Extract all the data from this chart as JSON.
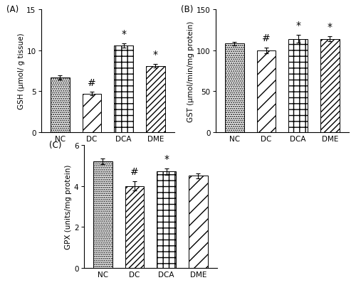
{
  "panel_A": {
    "label": "(A)",
    "categories": [
      "NC",
      "DC",
      "DCA",
      "DME"
    ],
    "values": [
      6.7,
      4.7,
      10.6,
      8.1
    ],
    "errors": [
      0.25,
      0.2,
      0.28,
      0.22
    ],
    "ylabel": "GSH (μmol/ g tissue)",
    "ylim": [
      0,
      15
    ],
    "yticks": [
      0,
      5,
      10,
      15
    ],
    "annotations": [
      "",
      "#",
      "*",
      "*"
    ],
    "hatches": [
      "......",
      "//",
      "++",
      "////"
    ]
  },
  "panel_B": {
    "label": "(B)",
    "categories": [
      "NC",
      "DC",
      "DCA",
      "DME"
    ],
    "values": [
      108,
      100,
      114,
      114
    ],
    "errors": [
      2.5,
      3.5,
      4.5,
      3.0
    ],
    "ylabel": "GST (μmol/min/mg protein)",
    "ylim": [
      0,
      150
    ],
    "yticks": [
      0,
      50,
      100,
      150
    ],
    "annotations": [
      "",
      "#",
      "*",
      "*"
    ],
    "hatches": [
      "......",
      "//",
      "++",
      "////"
    ]
  },
  "panel_C": {
    "label": "(C)",
    "categories": [
      "NC",
      "DC",
      "DCA",
      "DME"
    ],
    "values": [
      5.2,
      4.0,
      4.7,
      4.5
    ],
    "errors": [
      0.15,
      0.22,
      0.15,
      0.12
    ],
    "ylabel": "GPX (units/mg protein)",
    "ylim": [
      0,
      6
    ],
    "yticks": [
      0,
      2,
      4,
      6
    ],
    "annotations": [
      "",
      "#",
      "*",
      ""
    ],
    "hatches": [
      "......",
      "////",
      "++",
      "//"
    ]
  },
  "background_color": "#ffffff",
  "fontsize": 7.5,
  "bar_width": 0.6
}
